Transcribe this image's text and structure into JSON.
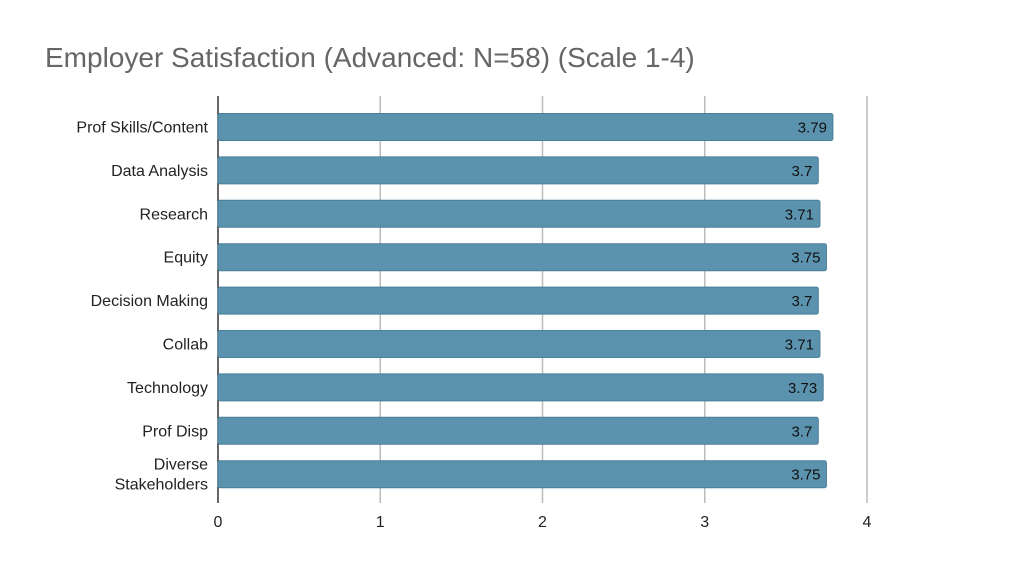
{
  "chart_data": {
    "type": "bar",
    "orientation": "horizontal",
    "title": "Employer Satisfaction (Advanced: N=58) (Scale 1-4)",
    "categories": [
      [
        "Prof Skills/Content"
      ],
      [
        "Data Analysis"
      ],
      [
        "Research"
      ],
      [
        "Equity"
      ],
      [
        "Decision Making"
      ],
      [
        "Collab"
      ],
      [
        "Technology"
      ],
      [
        "Prof Disp"
      ],
      [
        "Diverse",
        "Stakeholders"
      ]
    ],
    "values": [
      3.79,
      3.7,
      3.71,
      3.75,
      3.7,
      3.71,
      3.73,
      3.7,
      3.75
    ],
    "data_labels": [
      "3.79",
      "3.7",
      "3.71",
      "3.75",
      "3.7",
      "3.71",
      "3.73",
      "3.7",
      "3.75"
    ],
    "xlim": [
      0,
      4
    ],
    "xticks": [
      0,
      1,
      2,
      3,
      4
    ],
    "xlabel": "",
    "ylabel": "",
    "grid": "vertical",
    "legend": "none",
    "colors": {
      "bar": "#5b93ae",
      "bar_edge": "#4a7f99",
      "grid": "#bbbbbb",
      "axis": "#333333",
      "title": "#666666"
    }
  }
}
